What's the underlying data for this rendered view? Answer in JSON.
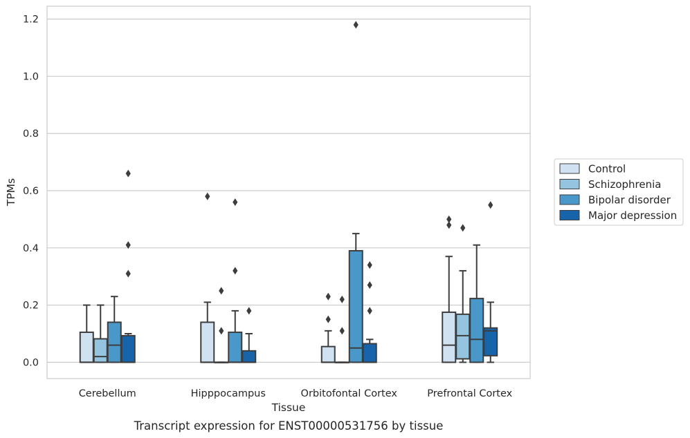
{
  "chart_data": {
    "type": "box",
    "xlabel": "Tissue",
    "ylabel": "TPMs",
    "caption": "Transcript expression for ENST00000531756 by tissue",
    "ylim": [
      -0.057,
      1.245
    ],
    "yticks": [
      0.0,
      0.2,
      0.4,
      0.6,
      0.8,
      1.0,
      1.2
    ],
    "ytick_labels": [
      "0.0",
      "0.2",
      "0.4",
      "0.6",
      "0.8",
      "1.0",
      "1.2"
    ],
    "grid": true,
    "legend_placement": "right-outside",
    "categories": [
      "Cerebellum",
      "Hipppocampus",
      "Orbitofontal Cortex",
      "Prefrontal Cortex"
    ],
    "series": [
      {
        "name": "Control",
        "color": "#d0e1f2",
        "boxes": [
          {
            "q1": 0.0,
            "median": 0.0,
            "q3": 0.105,
            "whislo": 0.0,
            "whishi": 0.2,
            "fliers": []
          },
          {
            "q1": 0.0,
            "median": 0.0,
            "q3": 0.14,
            "whislo": 0.0,
            "whishi": 0.21,
            "fliers": [
              0.58
            ]
          },
          {
            "q1": 0.0,
            "median": 0.0,
            "q3": 0.055,
            "whislo": 0.0,
            "whishi": 0.11,
            "fliers": [
              0.15,
              0.23
            ]
          },
          {
            "q1": 0.0,
            "median": 0.06,
            "q3": 0.175,
            "whislo": 0.0,
            "whishi": 0.37,
            "fliers": [
              0.48,
              0.5
            ]
          }
        ]
      },
      {
        "name": "Schizophrenia",
        "color": "#94c4df",
        "boxes": [
          {
            "q1": 0.0,
            "median": 0.02,
            "q3": 0.082,
            "whislo": 0.0,
            "whishi": 0.2,
            "fliers": []
          },
          {
            "q1": 0.0,
            "median": 0.0,
            "q3": 0.0,
            "whislo": 0.0,
            "whishi": 0.0,
            "fliers": [
              0.11,
              0.25
            ]
          },
          {
            "q1": 0.0,
            "median": 0.0,
            "q3": 0.0,
            "whislo": 0.0,
            "whishi": 0.0,
            "fliers": [
              0.11,
              0.22
            ]
          },
          {
            "q1": 0.012,
            "median": 0.093,
            "q3": 0.168,
            "whislo": 0.0,
            "whishi": 0.32,
            "fliers": [
              0.47
            ]
          }
        ]
      },
      {
        "name": "Bipolar disorder",
        "color": "#4a98c9",
        "boxes": [
          {
            "q1": 0.0,
            "median": 0.06,
            "q3": 0.14,
            "whislo": 0.0,
            "whishi": 0.23,
            "fliers": []
          },
          {
            "q1": 0.0,
            "median": 0.0,
            "q3": 0.105,
            "whislo": 0.0,
            "whishi": 0.18,
            "fliers": [
              0.32,
              0.56
            ]
          },
          {
            "q1": 0.0,
            "median": 0.05,
            "q3": 0.39,
            "whislo": 0.0,
            "whishi": 0.45,
            "fliers": [
              1.18
            ]
          },
          {
            "q1": 0.0,
            "median": 0.08,
            "q3": 0.223,
            "whislo": 0.0,
            "whishi": 0.41,
            "fliers": []
          }
        ]
      },
      {
        "name": "Major depression",
        "color": "#1764ab",
        "boxes": [
          {
            "q1": 0.0,
            "median": 0.0,
            "q3": 0.093,
            "whislo": 0.0,
            "whishi": 0.1,
            "fliers": [
              0.31,
              0.41,
              0.66
            ]
          },
          {
            "q1": 0.0,
            "median": 0.0,
            "q3": 0.04,
            "whislo": 0.0,
            "whishi": 0.1,
            "fliers": [
              0.18
            ]
          },
          {
            "q1": 0.0,
            "median": 0.0,
            "q3": 0.065,
            "whislo": 0.0,
            "whishi": 0.08,
            "fliers": [
              0.18,
              0.27,
              0.34
            ]
          },
          {
            "q1": 0.023,
            "median": 0.11,
            "q3": 0.12,
            "whislo": 0.0,
            "whishi": 0.21,
            "fliers": [
              0.55
            ]
          }
        ]
      }
    ]
  }
}
